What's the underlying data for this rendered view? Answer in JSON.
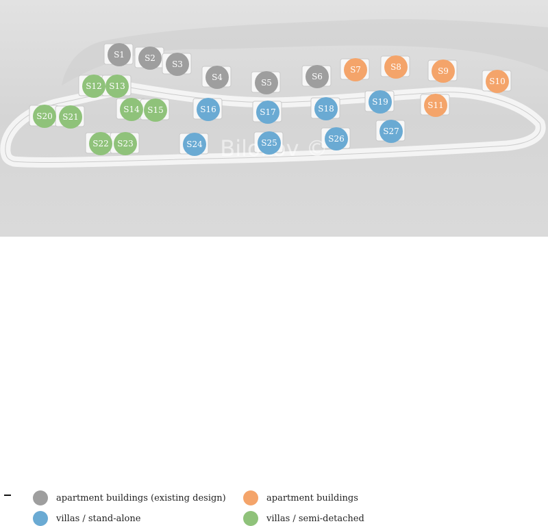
{
  "watermark": "Bilokov ©",
  "categories": {
    "existing": {
      "label": "apartment buildings (existing design)",
      "color": "#9e9e9e"
    },
    "apartment": {
      "label": "apartment buildings",
      "color": "#f4a46a"
    },
    "standalone": {
      "label": "villas / stand-alone",
      "color": "#6aaad3"
    },
    "semi": {
      "label": "villas / semi-detached",
      "color": "#8fc27a"
    }
  },
  "plots": [
    {
      "id": "S1",
      "cat": "existing"
    },
    {
      "id": "S2",
      "cat": "existing"
    },
    {
      "id": "S3",
      "cat": "existing"
    },
    {
      "id": "S4",
      "cat": "existing"
    },
    {
      "id": "S5",
      "cat": "existing"
    },
    {
      "id": "S6",
      "cat": "existing"
    },
    {
      "id": "S7",
      "cat": "apartment"
    },
    {
      "id": "S8",
      "cat": "apartment"
    },
    {
      "id": "S9",
      "cat": "apartment"
    },
    {
      "id": "S10",
      "cat": "apartment"
    },
    {
      "id": "S11",
      "cat": "apartment"
    },
    {
      "id": "S12",
      "cat": "semi"
    },
    {
      "id": "S13",
      "cat": "semi"
    },
    {
      "id": "S14",
      "cat": "semi"
    },
    {
      "id": "S15",
      "cat": "semi"
    },
    {
      "id": "S16",
      "cat": "standalone"
    },
    {
      "id": "S17",
      "cat": "standalone"
    },
    {
      "id": "S18",
      "cat": "standalone"
    },
    {
      "id": "S19",
      "cat": "standalone"
    },
    {
      "id": "S20",
      "cat": "semi"
    },
    {
      "id": "S21",
      "cat": "semi"
    },
    {
      "id": "S22",
      "cat": "semi"
    },
    {
      "id": "S23",
      "cat": "semi"
    },
    {
      "id": "S24",
      "cat": "standalone"
    },
    {
      "id": "S25",
      "cat": "standalone"
    },
    {
      "id": "S26",
      "cat": "standalone"
    },
    {
      "id": "S27",
      "cat": "standalone"
    }
  ]
}
